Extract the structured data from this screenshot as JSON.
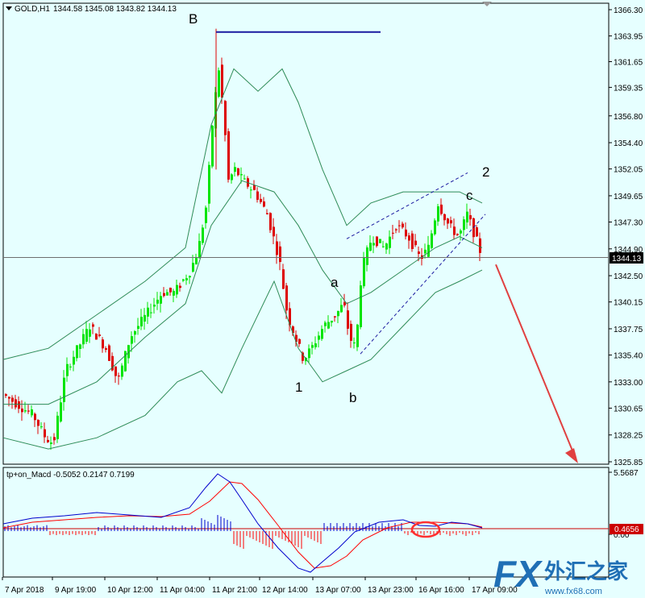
{
  "chart_data": [
    {
      "type": "candlestick",
      "symbol_header": "GOLD,H1",
      "ohlc_header": "1344.58 1345.08 1343.82 1344.13",
      "current_price": 1344.13,
      "current_price_label": "1344.13",
      "ylim": [
        1325.0,
        1367.5
      ],
      "y_ticks": [
        "1366.30",
        "1363.95",
        "1361.65",
        "1359.35",
        "1356.80",
        "1354.40",
        "1352.05",
        "1349.65",
        "1347.30",
        "1344.90",
        "1342.50",
        "1340.15",
        "1337.75",
        "1335.40",
        "1333.00",
        "1330.65",
        "1328.25",
        "1325.85"
      ],
      "x_ticks": [
        "7 Apr 2018",
        "9 Apr 19:00",
        "10 Apr 12:00",
        "11 Apr 04:00",
        "11 Apr 21:00",
        "12 Apr 14:00",
        "13 Apr 07:00",
        "13 Apr 23:00",
        "16 Apr 16:00",
        "17 Apr 09:00"
      ],
      "wave_labels": [
        "B",
        "2",
        "c",
        "a",
        "1",
        "b"
      ],
      "colors": {
        "bull": "#00e400",
        "bear": "#dd0000",
        "bands": "#2e8b57",
        "resistance": "#1a1aa0",
        "arrow": "#e04040",
        "grid_line": "#6e6e6e"
      },
      "indicators": [
        "bollinger_bands",
        "dashed_trend_channel",
        "horizontal_resistance",
        "projection_arrow"
      ]
    },
    {
      "type": "macd",
      "label": "tp+on_Macd -0.5052 0.2147 0.7199",
      "y_ticks": [
        "5.5687",
        "0.00"
      ],
      "level_label": "0.4656",
      "colors": {
        "macd": "#0000cc",
        "signal": "#ff0000",
        "hist_pos": "#0000cc",
        "hist_neg": "#ff0000",
        "level": "#cc0000",
        "highlight": "#ff3030"
      }
    }
  ],
  "watermark": {
    "brand": "FX",
    "cn": "外汇之家",
    "site": "www.fx68.com"
  }
}
